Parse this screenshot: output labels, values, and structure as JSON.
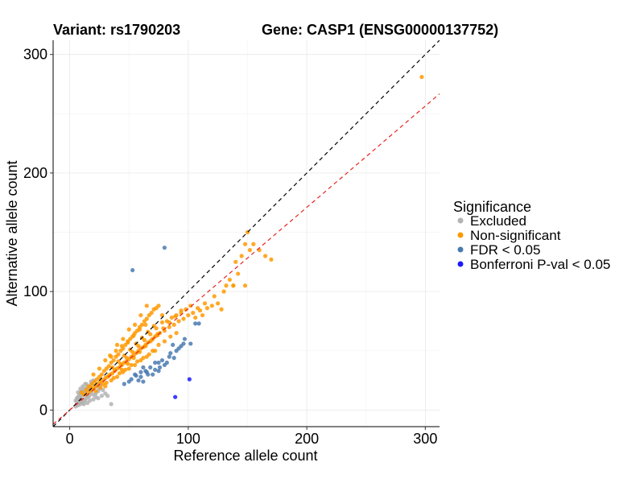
{
  "chart_data": {
    "type": "scatter",
    "title_left": "Variant: rs1790203",
    "title_right": "Gene: CASP1 (ENSG00000137752)",
    "xlabel": "Reference allele count",
    "ylabel": "Alternative allele count",
    "xlim": [
      -14,
      312
    ],
    "ylim": [
      -14,
      312
    ],
    "xticks": [
      0,
      100,
      200,
      300
    ],
    "yticks": [
      0,
      100,
      200,
      300
    ],
    "grid": true,
    "legend": {
      "title": "Significance",
      "placement": "right",
      "items": [
        {
          "label": "Excluded",
          "color": "#b3b3b3"
        },
        {
          "label": "Non-significant",
          "color": "#ff9900"
        },
        {
          "label": "FDR < 0.05",
          "color": "#4a7ab0"
        },
        {
          "label": "Bonferroni P-val < 0.05",
          "color": "#1a1aff"
        }
      ]
    },
    "reference_lines": [
      {
        "name": "identity",
        "slope": 1.0,
        "intercept": 0,
        "color": "#000000",
        "dash": "dashed"
      },
      {
        "name": "fit",
        "slope": 0.855,
        "intercept": 0,
        "color": "#e8231e",
        "dash": "dashed"
      }
    ],
    "series": [
      {
        "name": "Excluded",
        "color": "#b3b3b3",
        "points": [
          [
            5,
            3
          ],
          [
            6,
            5
          ],
          [
            7,
            4
          ],
          [
            8,
            6
          ],
          [
            9,
            5
          ],
          [
            10,
            7
          ],
          [
            8,
            9
          ],
          [
            6,
            8
          ],
          [
            11,
            6
          ],
          [
            12,
            9
          ],
          [
            13,
            8
          ],
          [
            10,
            12
          ],
          [
            9,
            10
          ],
          [
            7,
            11
          ],
          [
            14,
            10
          ],
          [
            15,
            12
          ],
          [
            12,
            15
          ],
          [
            11,
            14
          ],
          [
            16,
            11
          ],
          [
            13,
            16
          ],
          [
            8,
            13
          ],
          [
            10,
            16
          ],
          [
            17,
            13
          ],
          [
            18,
            15
          ],
          [
            6,
            10
          ],
          [
            14,
            18
          ],
          [
            9,
            14
          ],
          [
            20,
            13
          ],
          [
            15,
            20
          ],
          [
            12,
            18
          ],
          [
            22,
            14
          ],
          [
            19,
            17
          ],
          [
            5,
            8
          ],
          [
            16,
            19
          ],
          [
            24,
            16
          ],
          [
            11,
            20
          ],
          [
            21,
            19
          ],
          [
            13,
            22
          ],
          [
            18,
            22
          ],
          [
            25,
            18
          ],
          [
            10,
            7
          ],
          [
            17,
            8
          ],
          [
            12,
            5
          ],
          [
            20,
            9
          ],
          [
            15,
            6
          ],
          [
            24,
            10
          ],
          [
            27,
            12
          ],
          [
            22,
            11
          ],
          [
            35,
            5
          ],
          [
            18,
            24
          ],
          [
            26,
            21
          ],
          [
            28,
            17
          ],
          [
            7,
            15
          ],
          [
            20,
            25
          ],
          [
            30,
            14
          ],
          [
            23,
            20
          ],
          [
            14,
            22
          ],
          [
            9,
            18
          ],
          [
            32,
            12
          ],
          [
            25,
            23
          ]
        ]
      },
      {
        "name": "Non-significant",
        "color": "#ff9900",
        "points": [
          [
            10,
            15
          ],
          [
            12,
            13
          ],
          [
            14,
            17
          ],
          [
            15,
            14
          ],
          [
            16,
            20
          ],
          [
            17,
            16
          ],
          [
            18,
            19
          ],
          [
            19,
            22
          ],
          [
            20,
            18
          ],
          [
            21,
            24
          ],
          [
            22,
            20
          ],
          [
            23,
            26
          ],
          [
            24,
            22
          ],
          [
            25,
            28
          ],
          [
            26,
            24
          ],
          [
            27,
            30
          ],
          [
            28,
            25
          ],
          [
            29,
            33
          ],
          [
            30,
            27
          ],
          [
            31,
            35
          ],
          [
            32,
            28
          ],
          [
            33,
            37
          ],
          [
            34,
            30
          ],
          [
            35,
            40
          ],
          [
            36,
            31
          ],
          [
            37,
            42
          ],
          [
            38,
            33
          ],
          [
            39,
            45
          ],
          [
            40,
            35
          ],
          [
            41,
            47
          ],
          [
            42,
            36
          ],
          [
            43,
            50
          ],
          [
            44,
            38
          ],
          [
            45,
            52
          ],
          [
            46,
            40
          ],
          [
            47,
            55
          ],
          [
            48,
            41
          ],
          [
            49,
            57
          ],
          [
            50,
            43
          ],
          [
            51,
            60
          ],
          [
            52,
            45
          ],
          [
            53,
            62
          ],
          [
            54,
            46
          ],
          [
            55,
            65
          ],
          [
            56,
            48
          ],
          [
            57,
            67
          ],
          [
            58,
            50
          ],
          [
            59,
            70
          ],
          [
            60,
            52
          ],
          [
            61,
            72
          ],
          [
            62,
            53
          ],
          [
            63,
            75
          ],
          [
            64,
            55
          ],
          [
            65,
            77
          ],
          [
            66,
            57
          ],
          [
            67,
            80
          ],
          [
            68,
            58
          ],
          [
            69,
            82
          ],
          [
            70,
            60
          ],
          [
            71,
            85
          ],
          [
            72,
            62
          ],
          [
            73,
            86
          ],
          [
            74,
            63
          ],
          [
            75,
            88
          ],
          [
            76,
            65
          ],
          [
            78,
            80
          ],
          [
            80,
            67
          ],
          [
            82,
            75
          ],
          [
            84,
            70
          ],
          [
            86,
            78
          ],
          [
            88,
            72
          ],
          [
            90,
            80
          ],
          [
            92,
            75
          ],
          [
            94,
            82
          ],
          [
            96,
            77
          ],
          [
            98,
            85
          ],
          [
            100,
            80
          ],
          [
            102,
            88
          ],
          [
            104,
            82
          ],
          [
            106,
            78
          ],
          [
            108,
            86
          ],
          [
            110,
            84
          ],
          [
            112,
            80
          ],
          [
            114,
            90
          ],
          [
            116,
            86
          ],
          [
            120,
            88
          ],
          [
            122,
            96
          ],
          [
            125,
            90
          ],
          [
            128,
            85
          ],
          [
            130,
            100
          ],
          [
            132,
            105
          ],
          [
            135,
            110
          ],
          [
            138,
            105
          ],
          [
            140,
            125
          ],
          [
            142,
            115
          ],
          [
            145,
            130
          ],
          [
            148,
            140
          ],
          [
            150,
            150
          ],
          [
            152,
            135
          ],
          [
            155,
            140
          ],
          [
            160,
            135
          ],
          [
            165,
            130
          ],
          [
            170,
            127
          ],
          [
            148,
            105
          ],
          [
            138,
            105
          ],
          [
            297,
            281
          ],
          [
            20,
            30
          ],
          [
            25,
            35
          ],
          [
            30,
            42
          ],
          [
            35,
            45
          ],
          [
            40,
            55
          ],
          [
            45,
            60
          ],
          [
            50,
            68
          ],
          [
            55,
            72
          ],
          [
            60,
            80
          ],
          [
            65,
            88
          ],
          [
            30,
            20
          ],
          [
            35,
            25
          ],
          [
            40,
            28
          ],
          [
            45,
            32
          ],
          [
            50,
            35
          ],
          [
            55,
            38
          ],
          [
            60,
            42
          ],
          [
            65,
            45
          ],
          [
            70,
            50
          ],
          [
            75,
            55
          ],
          [
            80,
            58
          ],
          [
            85,
            62
          ],
          [
            90,
            65
          ],
          [
            28,
            22
          ],
          [
            33,
            29
          ],
          [
            38,
            34
          ],
          [
            43,
            39
          ],
          [
            48,
            44
          ],
          [
            53,
            49
          ],
          [
            58,
            54
          ],
          [
            63,
            59
          ],
          [
            68,
            64
          ],
          [
            73,
            69
          ],
          [
            78,
            74
          ],
          [
            36,
            36
          ],
          [
            41,
            41
          ],
          [
            46,
            46
          ],
          [
            51,
            51
          ],
          [
            56,
            56
          ],
          [
            61,
            61
          ],
          [
            66,
            66
          ],
          [
            71,
            71
          ],
          [
            44,
            34
          ],
          [
            49,
            39
          ],
          [
            54,
            44
          ],
          [
            59,
            49
          ],
          [
            64,
            54
          ],
          [
            69,
            59
          ],
          [
            74,
            64
          ],
          [
            79,
            69
          ],
          [
            84,
            74
          ],
          [
            89,
            79
          ],
          [
            94,
            84
          ],
          [
            34,
            46
          ],
          [
            39,
            50
          ],
          [
            44,
            54
          ],
          [
            49,
            58
          ],
          [
            54,
            63
          ],
          [
            59,
            68
          ],
          [
            64,
            72
          ],
          [
            22,
            16
          ],
          [
            26,
            19
          ],
          [
            31,
            23
          ],
          [
            37,
            27
          ],
          [
            42,
            31
          ],
          [
            47,
            34
          ],
          [
            52,
            38
          ],
          [
            57,
            41
          ],
          [
            62,
            44
          ],
          [
            67,
            47
          ],
          [
            72,
            50
          ]
        ]
      },
      {
        "name": "FDR < 0.05",
        "color": "#4a7ab0",
        "points": [
          [
            53,
            118
          ],
          [
            80,
            137
          ],
          [
            87,
            55
          ],
          [
            97,
            60
          ],
          [
            102,
            56
          ],
          [
            106,
            73
          ],
          [
            109,
            73
          ],
          [
            75,
            33
          ],
          [
            80,
            38
          ],
          [
            84,
            45
          ],
          [
            70,
            30
          ],
          [
            72,
            40
          ],
          [
            60,
            28
          ],
          [
            58,
            25
          ],
          [
            65,
            32
          ],
          [
            68,
            36
          ],
          [
            75,
            40
          ],
          [
            78,
            42
          ],
          [
            62,
            24
          ],
          [
            55,
            30
          ],
          [
            85,
            48
          ],
          [
            90,
            50
          ],
          [
            92,
            52
          ],
          [
            94,
            54
          ],
          [
            96,
            56
          ],
          [
            88,
            44
          ],
          [
            82,
            40
          ],
          [
            76,
            36
          ],
          [
            64,
            33
          ],
          [
            60,
            32
          ],
          [
            56,
            29
          ],
          [
            52,
            26
          ],
          [
            50,
            24
          ],
          [
            46,
            22
          ],
          [
            62,
            36
          ],
          [
            66,
            30
          ],
          [
            72,
            34
          ]
        ]
      },
      {
        "name": "Bonferroni P-val < 0.05",
        "color": "#1a1aff",
        "points": [
          [
            101,
            26
          ],
          [
            89,
            11
          ]
        ]
      }
    ]
  }
}
